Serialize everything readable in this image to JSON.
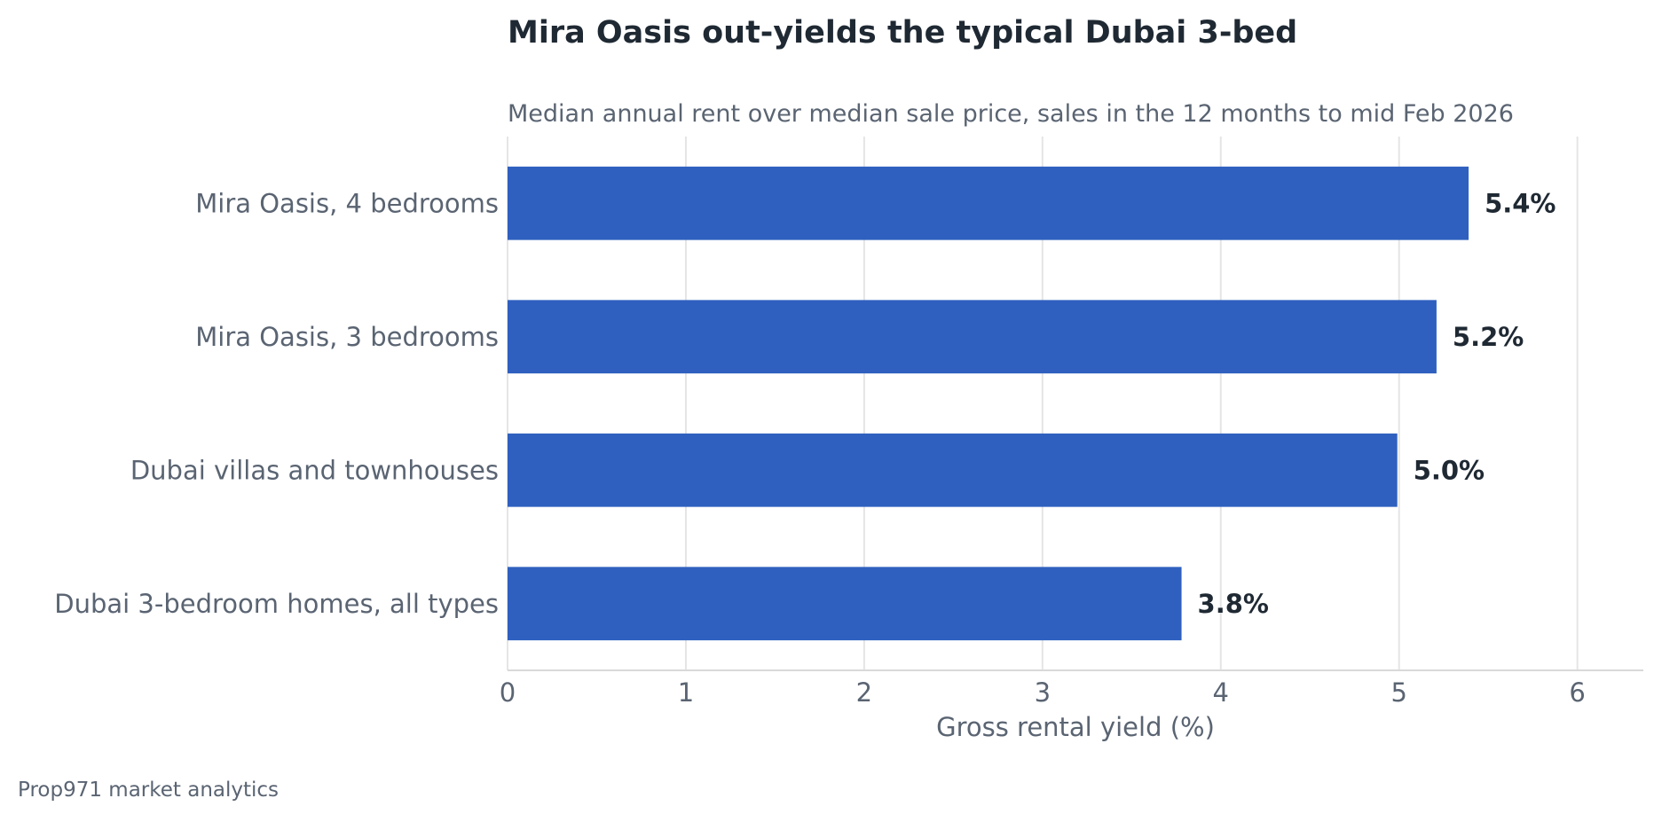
{
  "chart_data": {
    "type": "bar",
    "orientation": "horizontal",
    "title": "Mira Oasis out-yields the typical Dubai 3-bed",
    "subtitle": "Median annual rent over median sale price, sales in the 12 months to mid Feb 2026",
    "xlabel": "Gross rental yield (%)",
    "ylabel": "",
    "categories": [
      "Mira Oasis, 4 bedrooms",
      "Mira Oasis, 3 bedrooms",
      "Dubai villas and townhouses",
      "Dubai 3-bedroom homes, all types"
    ],
    "values": [
      5.39,
      5.21,
      4.99,
      3.78
    ],
    "value_labels": [
      "5.4%",
      "5.2%",
      "5.0%",
      "3.8%"
    ],
    "xlim": [
      0,
      6.37
    ],
    "xticks": [
      0,
      1,
      2,
      3,
      4,
      5,
      6
    ],
    "grid": "vertical",
    "bar_color": "#2f60bf",
    "source": "Prop971 market analytics"
  }
}
